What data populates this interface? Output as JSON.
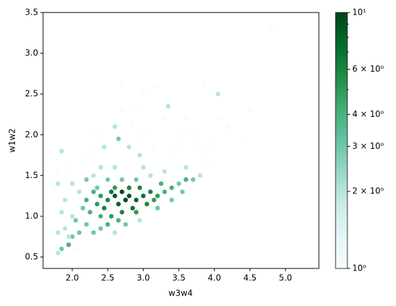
{
  "chart_data": {
    "type": "hexbin",
    "x_label": "w3w4",
    "y_label": "w1w2",
    "x": [
      2.6,
      2.7,
      2.8,
      2.75,
      2.65,
      2.9,
      3.0,
      2.85,
      2.55,
      2.5,
      2.45,
      2.7,
      3.1,
      3.05,
      2.95,
      2.6,
      2.4,
      2.35,
      3.2,
      2.55,
      2.8,
      3.15,
      2.9,
      2.65,
      2.5,
      2.4,
      2.3,
      2.2,
      2.25,
      3.3,
      3.4,
      3.5,
      3.6,
      3.7,
      3.25,
      2.2,
      2.1,
      2.0,
      1.95,
      1.85,
      1.8,
      2.05,
      2.15,
      2.1,
      2.0,
      1.9,
      2.3,
      2.4,
      2.5,
      2.7,
      2.9,
      3.1,
      2.3,
      2.0,
      1.9,
      1.85,
      1.8,
      2.4,
      2.6,
      3.0,
      3.3,
      3.6,
      3.8,
      3.9,
      2.65,
      2.6,
      2.8,
      3.3,
      3.0,
      3.35,
      4.05,
      3.5,
      2.9,
      2.45,
      2.25,
      1.85,
      1.95,
      2.15,
      3.7,
      4.0,
      4.2,
      4.5,
      4.8,
      3.85,
      3.2,
      3.0,
      2.7,
      3.45,
      3.8,
      4.4,
      1.8,
      1.75,
      2.95,
      2.6,
      2.75,
      3.2,
      3.4,
      3.55,
      2.2,
      2.35,
      1.95,
      1.8,
      2.05,
      2.7,
      3.6,
      4.1,
      2.95,
      3.15,
      2.85,
      2.35
    ],
    "y": [
      1.25,
      1.3,
      1.25,
      1.2,
      1.15,
      1.2,
      1.25,
      1.1,
      1.3,
      1.2,
      1.1,
      1.05,
      1.3,
      1.15,
      1.35,
      1.35,
      1.25,
      1.15,
      1.25,
      1.0,
      1.35,
      1.2,
      1.05,
      0.95,
      0.9,
      1.0,
      1.3,
      1.2,
      1.05,
      1.3,
      1.35,
      1.4,
      1.45,
      1.45,
      1.4,
      0.9,
      0.8,
      0.75,
      0.65,
      0.6,
      0.55,
      0.95,
      1.1,
      1.3,
      1.0,
      0.85,
      0.8,
      0.85,
      1.45,
      1.45,
      1.45,
      1.5,
      1.5,
      1.4,
      1.2,
      1.05,
      1.4,
      1.6,
      1.6,
      1.6,
      1.55,
      1.6,
      1.5,
      1.6,
      1.95,
      2.1,
      1.85,
      2.2,
      2.0,
      2.35,
      2.5,
      2.0,
      2.3,
      1.85,
      1.8,
      1.8,
      1.6,
      1.7,
      2.0,
      1.9,
      2.1,
      2.3,
      3.3,
      2.6,
      2.6,
      2.5,
      2.3,
      1.8,
      1.8,
      1.95,
      1.55,
      1.35,
      0.95,
      0.8,
      0.9,
      1.1,
      1.2,
      1.3,
      1.45,
      1.35,
      0.75,
      0.8,
      0.6,
      2.6,
      2.2,
      2.2,
      1.75,
      1.85,
      2.15,
      2.0
    ],
    "values": [
      9,
      10,
      9,
      10,
      8,
      8,
      7,
      7,
      7,
      6,
      6,
      6,
      6,
      6,
      6,
      5,
      5,
      5,
      5,
      5,
      6,
      5,
      5,
      4,
      4,
      4,
      4,
      4,
      4,
      4,
      4,
      3,
      4,
      3,
      4,
      3,
      3,
      3,
      4,
      3,
      2,
      3,
      3,
      2,
      2,
      2,
      3,
      3,
      3,
      3,
      3,
      2,
      2,
      2,
      2,
      2,
      2,
      2,
      2,
      2,
      2,
      2,
      2,
      1,
      3,
      2,
      2,
      1,
      1,
      2,
      2,
      1,
      1,
      2,
      1,
      2,
      1,
      1,
      1,
      1,
      1,
      1,
      1,
      1,
      1,
      1,
      1,
      1,
      1,
      1,
      1,
      1,
      2,
      2,
      3,
      3,
      3,
      3,
      3,
      3,
      2,
      2,
      1,
      1,
      1,
      1,
      2,
      1,
      1,
      1
    ],
    "xlim": [
      1.59,
      5.47
    ],
    "ylim": [
      0.36,
      3.5
    ],
    "xticks": [
      {
        "value": 2,
        "label": "2.0"
      },
      2.5,
      {
        "value": 3,
        "label": "3.0"
      },
      3.5,
      {
        "value": 4,
        "label": "4.0"
      },
      4.5,
      {
        "value": 5,
        "label": "5.0"
      }
    ],
    "yticks": [
      0.5,
      {
        "value": 1,
        "label": "1.0"
      },
      1.5,
      {
        "value": 2,
        "label": "2.0"
      },
      2.5,
      {
        "value": 3,
        "label": "3.0"
      },
      3.5
    ],
    "colormap": [
      "#f7fcfd",
      "#e5f5f9",
      "#ccece6",
      "#99d8c9",
      "#66c2a4",
      "#41ae76",
      "#238b45",
      "#006d2c",
      "#00441b"
    ],
    "colorbar_scale": "log",
    "colorbar_lim": [
      1,
      10
    ],
    "colorbar_ticks": [
      {
        "value": 1,
        "label": "10⁰"
      },
      {
        "value": 2,
        "label": "2 × 10⁰"
      },
      {
        "value": 3,
        "label": "3 × 10⁰"
      },
      {
        "value": 4,
        "label": "4 × 10⁰"
      },
      {
        "value": 6,
        "label": "6 × 10⁰"
      },
      {
        "value": 10,
        "label": "10¹"
      }
    ],
    "colorbar_minor_ticks": [
      5,
      7,
      8,
      9
    ]
  }
}
